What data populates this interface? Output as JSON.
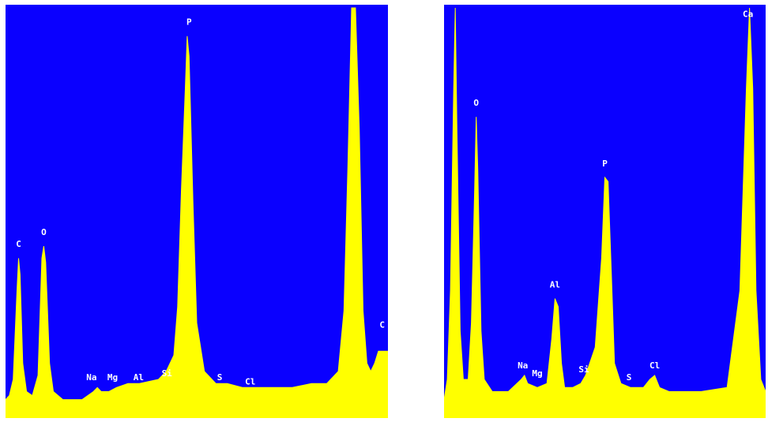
{
  "colors": {
    "background": "#0a00ff",
    "fill": "#ffff00",
    "label": "#ffffff"
  },
  "chart_data": [
    {
      "type": "area",
      "xlim": [
        0,
        3.0
      ],
      "ylim": [
        0,
        100
      ],
      "grid": false,
      "series": [
        {
          "values": [
            [
              0.0,
              3
            ],
            [
              0.01,
              4
            ],
            [
              0.02,
              8
            ],
            [
              0.03,
              30
            ],
            [
              0.034,
              38
            ],
            [
              0.038,
              34
            ],
            [
              0.045,
              12
            ],
            [
              0.055,
              5
            ],
            [
              0.07,
              4
            ],
            [
              0.085,
              9
            ],
            [
              0.095,
              38
            ],
            [
              0.1,
              41
            ],
            [
              0.105,
              37
            ],
            [
              0.115,
              12
            ],
            [
              0.125,
              5
            ],
            [
              0.15,
              3
            ],
            [
              0.2,
              3
            ],
            [
              0.23,
              5
            ],
            [
              0.24,
              6
            ],
            [
              0.25,
              5
            ],
            [
              0.27,
              5
            ],
            [
              0.29,
              6
            ],
            [
              0.32,
              7
            ],
            [
              0.35,
              7
            ],
            [
              0.4,
              8
            ],
            [
              0.42,
              10
            ],
            [
              0.44,
              14
            ],
            [
              0.45,
              26
            ],
            [
              0.46,
              55
            ],
            [
              0.47,
              80
            ],
            [
              0.475,
              93
            ],
            [
              0.48,
              88
            ],
            [
              0.49,
              52
            ],
            [
              0.5,
              22
            ],
            [
              0.52,
              10
            ],
            [
              0.55,
              7
            ],
            [
              0.58,
              7
            ],
            [
              0.62,
              6
            ],
            [
              0.66,
              6
            ],
            [
              0.7,
              6
            ],
            [
              0.75,
              6
            ],
            [
              0.8,
              7
            ],
            [
              0.84,
              7
            ],
            [
              0.87,
              10
            ],
            [
              0.885,
              25
            ],
            [
              0.895,
              60
            ],
            [
              0.905,
              100
            ],
            [
              0.915,
              100
            ],
            [
              0.925,
              70
            ],
            [
              0.935,
              25
            ],
            [
              0.945,
              12
            ],
            [
              0.955,
              10
            ],
            [
              0.965,
              12
            ],
            [
              0.975,
              15
            ],
            [
              1.0,
              15
            ]
          ]
        }
      ],
      "annotations": [
        {
          "text": "C",
          "x": 0.034,
          "y": 40
        },
        {
          "text": "O",
          "x": 0.1,
          "y": 43
        },
        {
          "text": "Na",
          "x": 0.225,
          "y": 7
        },
        {
          "text": "Mg",
          "x": 0.28,
          "y": 7
        },
        {
          "text": "Al",
          "x": 0.348,
          "y": 7
        },
        {
          "text": "Si",
          "x": 0.422,
          "y": 8
        },
        {
          "text": "P",
          "x": 0.48,
          "y": 95
        },
        {
          "text": "S",
          "x": 0.56,
          "y": 7
        },
        {
          "text": "Cl",
          "x": 0.64,
          "y": 6
        },
        {
          "text": "C",
          "x": 0.985,
          "y": 20
        }
      ]
    },
    {
      "type": "area",
      "xlim": [
        0,
        1.0
      ],
      "ylim": [
        0,
        100
      ],
      "grid": false,
      "series": [
        {
          "values": [
            [
              0.0,
              3
            ],
            [
              0.01,
              8
            ],
            [
              0.02,
              30
            ],
            [
              0.03,
              80
            ],
            [
              0.035,
              100
            ],
            [
              0.04,
              70
            ],
            [
              0.05,
              20
            ],
            [
              0.06,
              8
            ],
            [
              0.075,
              8
            ],
            [
              0.085,
              22
            ],
            [
              0.095,
              55
            ],
            [
              0.1,
              73
            ],
            [
              0.105,
              60
            ],
            [
              0.115,
              20
            ],
            [
              0.125,
              8
            ],
            [
              0.15,
              5
            ],
            [
              0.2,
              5
            ],
            [
              0.24,
              8
            ],
            [
              0.25,
              9
            ],
            [
              0.26,
              7
            ],
            [
              0.29,
              6
            ],
            [
              0.32,
              7
            ],
            [
              0.335,
              18
            ],
            [
              0.345,
              28
            ],
            [
              0.355,
              26
            ],
            [
              0.365,
              12
            ],
            [
              0.375,
              6
            ],
            [
              0.4,
              6
            ],
            [
              0.425,
              7
            ],
            [
              0.44,
              9
            ],
            [
              0.47,
              16
            ],
            [
              0.49,
              38
            ],
            [
              0.5,
              58
            ],
            [
              0.51,
              57
            ],
            [
              0.52,
              35
            ],
            [
              0.53,
              12
            ],
            [
              0.55,
              7
            ],
            [
              0.58,
              6
            ],
            [
              0.62,
              6
            ],
            [
              0.64,
              8
            ],
            [
              0.655,
              9
            ],
            [
              0.67,
              6
            ],
            [
              0.7,
              5
            ],
            [
              0.8,
              5
            ],
            [
              0.88,
              6
            ],
            [
              0.92,
              30
            ],
            [
              0.94,
              80
            ],
            [
              0.95,
              100
            ],
            [
              0.96,
              80
            ],
            [
              0.97,
              30
            ],
            [
              0.985,
              8
            ],
            [
              1.0,
              5
            ]
          ]
        }
      ],
      "annotations": [
        {
          "text": "O",
          "x": 0.1,
          "y": 75
        },
        {
          "text": "Al",
          "x": 0.345,
          "y": 30
        },
        {
          "text": "Na",
          "x": 0.245,
          "y": 10
        },
        {
          "text": "Mg",
          "x": 0.29,
          "y": 8
        },
        {
          "text": "Si",
          "x": 0.435,
          "y": 9
        },
        {
          "text": "P",
          "x": 0.5,
          "y": 60
        },
        {
          "text": "S",
          "x": 0.575,
          "y": 7
        },
        {
          "text": "Cl",
          "x": 0.655,
          "y": 10
        },
        {
          "text": "Ca",
          "x": 0.945,
          "y": 97
        }
      ]
    }
  ]
}
